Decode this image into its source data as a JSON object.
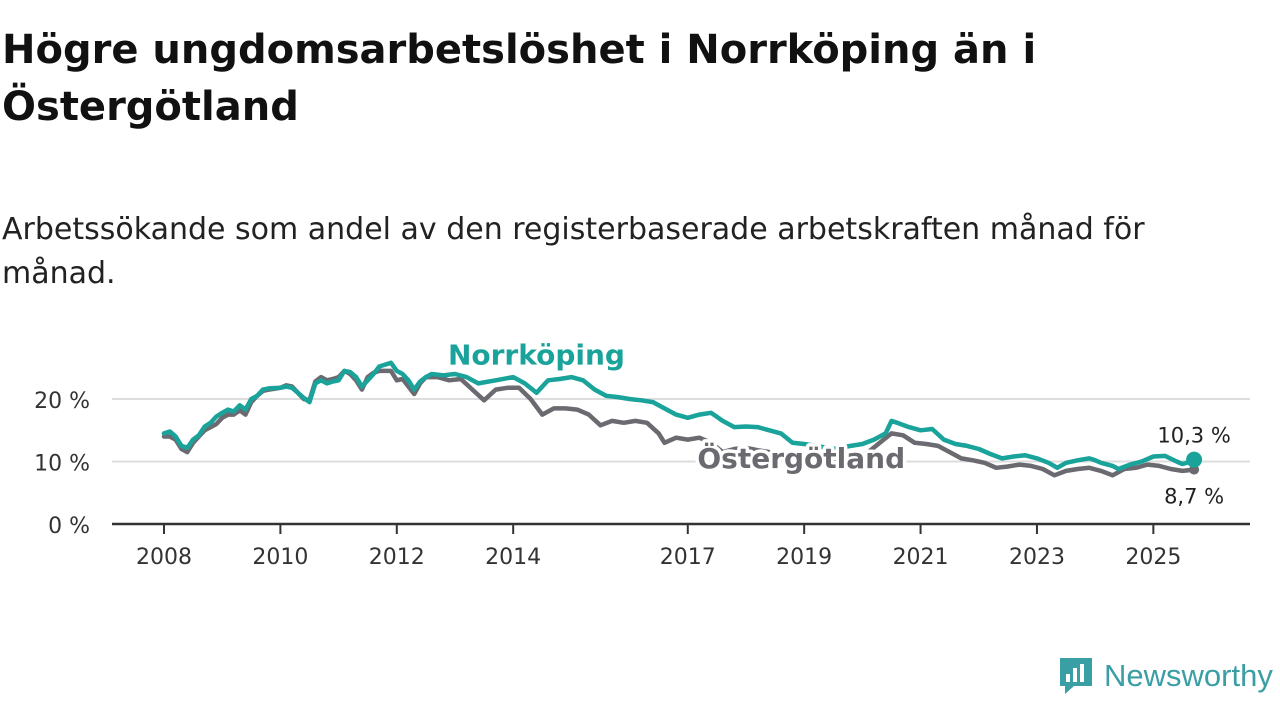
{
  "title": "Högre ungdomsarbetslöshet i Norrköping än i Östergötland",
  "subtitle": "Arbetssökande som andel av den registerbaserade arbetskraften månad för månad.",
  "brand": {
    "name": "Newsworthy",
    "icon": "newsworthy-logo-icon"
  },
  "colors": {
    "norrkoping": "#1aa39a",
    "ostergotland": "#6b6a70",
    "grid": "#dddddd",
    "axis": "#333333"
  },
  "chart_data": {
    "type": "line",
    "title": "Högre ungdomsarbetslöshet i Norrköping än i Östergötland",
    "xlabel": "",
    "ylabel": "",
    "xlim": [
      2008.0,
      2025.75
    ],
    "ylim": [
      0,
      25
    ],
    "x_ticks": [
      2008,
      2010,
      2012,
      2014,
      2017,
      2019,
      2021,
      2023,
      2025
    ],
    "y_ticks": [
      {
        "value": 0,
        "label": "0 %"
      },
      {
        "value": 10,
        "label": "10 %"
      },
      {
        "value": 20,
        "label": "20 %"
      }
    ],
    "series": [
      {
        "name": "Norrköping",
        "label_position": {
          "x": 2014.4,
          "y": 25.5
        },
        "end_label": "10,3 %",
        "points": [
          [
            2008.0,
            14.5
          ],
          [
            2008.1,
            14.8
          ],
          [
            2008.2,
            14.0
          ],
          [
            2008.3,
            12.5
          ],
          [
            2008.4,
            12.2
          ],
          [
            2008.5,
            13.5
          ],
          [
            2008.6,
            14.2
          ],
          [
            2008.7,
            15.6
          ],
          [
            2008.8,
            16.2
          ],
          [
            2008.9,
            17.2
          ],
          [
            2009.0,
            17.8
          ],
          [
            2009.1,
            18.3
          ],
          [
            2009.2,
            18.0
          ],
          [
            2009.3,
            19.0
          ],
          [
            2009.4,
            18.3
          ],
          [
            2009.5,
            20.0
          ],
          [
            2009.6,
            20.5
          ],
          [
            2009.7,
            21.5
          ],
          [
            2009.8,
            21.7
          ],
          [
            2010.0,
            21.8
          ],
          [
            2010.1,
            22.0
          ],
          [
            2010.2,
            21.8
          ],
          [
            2010.3,
            21.0
          ],
          [
            2010.4,
            20.2
          ],
          [
            2010.5,
            19.5
          ],
          [
            2010.6,
            22.5
          ],
          [
            2010.7,
            23.0
          ],
          [
            2010.8,
            22.5
          ],
          [
            2010.9,
            22.8
          ],
          [
            2011.0,
            23.0
          ],
          [
            2011.1,
            24.5
          ],
          [
            2011.2,
            24.3
          ],
          [
            2011.3,
            23.5
          ],
          [
            2011.4,
            22.0
          ],
          [
            2011.5,
            23.0
          ],
          [
            2011.6,
            24.0
          ],
          [
            2011.7,
            25.2
          ],
          [
            2011.8,
            25.5
          ],
          [
            2011.9,
            25.8
          ],
          [
            2012.0,
            24.5
          ],
          [
            2012.1,
            24.0
          ],
          [
            2012.2,
            23.0
          ],
          [
            2012.3,
            21.5
          ],
          [
            2012.4,
            22.8
          ],
          [
            2012.5,
            23.5
          ],
          [
            2012.6,
            24.0
          ],
          [
            2012.8,
            23.8
          ],
          [
            2013.0,
            24.0
          ],
          [
            2013.2,
            23.5
          ],
          [
            2013.4,
            22.5
          ],
          [
            2013.7,
            23.0
          ],
          [
            2014.0,
            23.5
          ],
          [
            2014.2,
            22.5
          ],
          [
            2014.4,
            21.0
          ],
          [
            2014.6,
            23.0
          ],
          [
            2014.8,
            23.2
          ],
          [
            2015.0,
            23.5
          ],
          [
            2015.2,
            23.0
          ],
          [
            2015.4,
            21.5
          ],
          [
            2015.6,
            20.5
          ],
          [
            2015.8,
            20.3
          ],
          [
            2016.0,
            20.0
          ],
          [
            2016.2,
            19.8
          ],
          [
            2016.4,
            19.5
          ],
          [
            2016.6,
            18.5
          ],
          [
            2016.8,
            17.5
          ],
          [
            2017.0,
            17.0
          ],
          [
            2017.2,
            17.5
          ],
          [
            2017.4,
            17.8
          ],
          [
            2017.6,
            16.5
          ],
          [
            2017.8,
            15.5
          ],
          [
            2018.0,
            15.6
          ],
          [
            2018.2,
            15.5
          ],
          [
            2018.4,
            15.0
          ],
          [
            2018.6,
            14.5
          ],
          [
            2018.8,
            13.0
          ],
          [
            2019.0,
            12.8
          ],
          [
            2019.2,
            12.5
          ],
          [
            2019.5,
            12.0
          ],
          [
            2019.8,
            12.5
          ],
          [
            2020.0,
            12.8
          ],
          [
            2020.2,
            13.5
          ],
          [
            2020.4,
            14.5
          ],
          [
            2020.5,
            16.5
          ],
          [
            2020.6,
            16.2
          ],
          [
            2020.8,
            15.5
          ],
          [
            2021.0,
            15.0
          ],
          [
            2021.2,
            15.2
          ],
          [
            2021.4,
            13.5
          ],
          [
            2021.6,
            12.8
          ],
          [
            2021.8,
            12.5
          ],
          [
            2022.0,
            12.0
          ],
          [
            2022.2,
            11.2
          ],
          [
            2022.4,
            10.5
          ],
          [
            2022.6,
            10.8
          ],
          [
            2022.8,
            11.0
          ],
          [
            2023.0,
            10.5
          ],
          [
            2023.2,
            9.8
          ],
          [
            2023.35,
            9.0
          ],
          [
            2023.5,
            9.8
          ],
          [
            2023.7,
            10.2
          ],
          [
            2023.9,
            10.5
          ],
          [
            2024.0,
            10.2
          ],
          [
            2024.1,
            9.8
          ],
          [
            2024.3,
            9.3
          ],
          [
            2024.4,
            8.8
          ],
          [
            2024.6,
            9.5
          ],
          [
            2024.8,
            10.0
          ],
          [
            2025.0,
            10.8
          ],
          [
            2025.2,
            10.9
          ],
          [
            2025.4,
            10.0
          ],
          [
            2025.5,
            9.6
          ],
          [
            2025.65,
            10.0
          ],
          [
            2025.7,
            10.3
          ]
        ]
      },
      {
        "name": "Östergötland",
        "label_position": {
          "x": 2018.95,
          "y": 9.0
        },
        "end_label": "8,7 %",
        "points": [
          [
            2008.0,
            14.0
          ],
          [
            2008.1,
            14.0
          ],
          [
            2008.2,
            13.5
          ],
          [
            2008.3,
            12.0
          ],
          [
            2008.4,
            11.5
          ],
          [
            2008.5,
            13.0
          ],
          [
            2008.6,
            14.0
          ],
          [
            2008.7,
            15.0
          ],
          [
            2008.8,
            15.5
          ],
          [
            2008.9,
            16.0
          ],
          [
            2009.0,
            17.0
          ],
          [
            2009.1,
            17.5
          ],
          [
            2009.2,
            17.5
          ],
          [
            2009.3,
            18.2
          ],
          [
            2009.4,
            17.5
          ],
          [
            2009.5,
            19.5
          ],
          [
            2009.6,
            20.5
          ],
          [
            2009.7,
            21.3
          ],
          [
            2009.8,
            21.5
          ],
          [
            2010.0,
            21.8
          ],
          [
            2010.1,
            22.2
          ],
          [
            2010.2,
            22.0
          ],
          [
            2010.3,
            21.0
          ],
          [
            2010.4,
            20.0
          ],
          [
            2010.5,
            19.8
          ],
          [
            2010.6,
            22.8
          ],
          [
            2010.7,
            23.5
          ],
          [
            2010.8,
            23.0
          ],
          [
            2010.9,
            23.2
          ],
          [
            2011.0,
            23.5
          ],
          [
            2011.1,
            24.5
          ],
          [
            2011.2,
            24.0
          ],
          [
            2011.3,
            23.0
          ],
          [
            2011.4,
            21.5
          ],
          [
            2011.5,
            23.5
          ],
          [
            2011.6,
            24.2
          ],
          [
            2011.7,
            24.5
          ],
          [
            2011.8,
            24.5
          ],
          [
            2011.9,
            24.5
          ],
          [
            2012.0,
            23.0
          ],
          [
            2012.1,
            23.2
          ],
          [
            2012.2,
            22.0
          ],
          [
            2012.3,
            20.8
          ],
          [
            2012.4,
            22.5
          ],
          [
            2012.5,
            23.5
          ],
          [
            2012.7,
            23.5
          ],
          [
            2012.9,
            23.0
          ],
          [
            2013.1,
            23.2
          ],
          [
            2013.3,
            21.5
          ],
          [
            2013.5,
            19.8
          ],
          [
            2013.7,
            21.5
          ],
          [
            2013.9,
            21.8
          ],
          [
            2014.1,
            21.8
          ],
          [
            2014.3,
            20.0
          ],
          [
            2014.5,
            17.5
          ],
          [
            2014.7,
            18.5
          ],
          [
            2014.9,
            18.5
          ],
          [
            2015.1,
            18.3
          ],
          [
            2015.3,
            17.5
          ],
          [
            2015.5,
            15.8
          ],
          [
            2015.7,
            16.5
          ],
          [
            2015.9,
            16.2
          ],
          [
            2016.1,
            16.5
          ],
          [
            2016.3,
            16.2
          ],
          [
            2016.5,
            14.5
          ],
          [
            2016.6,
            13.0
          ],
          [
            2016.8,
            13.8
          ],
          [
            2017.0,
            13.5
          ],
          [
            2017.2,
            13.8
          ],
          [
            2017.4,
            13.0
          ],
          [
            2017.6,
            11.5
          ],
          [
            2017.8,
            12.0
          ],
          [
            2018.0,
            12.2
          ],
          [
            2018.2,
            11.8
          ],
          [
            2018.4,
            11.5
          ],
          [
            2018.6,
            11.0
          ],
          [
            2018.8,
            10.5
          ],
          [
            2019.0,
            10.2
          ],
          [
            2019.3,
            10.0
          ],
          [
            2019.6,
            10.2
          ],
          [
            2019.9,
            10.5
          ],
          [
            2020.1,
            11.5
          ],
          [
            2020.3,
            13.0
          ],
          [
            2020.5,
            14.5
          ],
          [
            2020.7,
            14.2
          ],
          [
            2020.9,
            13.0
          ],
          [
            2021.1,
            12.8
          ],
          [
            2021.3,
            12.5
          ],
          [
            2021.5,
            11.5
          ],
          [
            2021.7,
            10.5
          ],
          [
            2021.9,
            10.2
          ],
          [
            2022.1,
            9.8
          ],
          [
            2022.3,
            9.0
          ],
          [
            2022.5,
            9.2
          ],
          [
            2022.7,
            9.5
          ],
          [
            2022.9,
            9.3
          ],
          [
            2023.1,
            8.8
          ],
          [
            2023.3,
            7.8
          ],
          [
            2023.5,
            8.5
          ],
          [
            2023.7,
            8.8
          ],
          [
            2023.9,
            9.0
          ],
          [
            2024.1,
            8.5
          ],
          [
            2024.3,
            7.8
          ],
          [
            2024.5,
            8.8
          ],
          [
            2024.7,
            9.0
          ],
          [
            2024.9,
            9.5
          ],
          [
            2025.1,
            9.3
          ],
          [
            2025.3,
            8.8
          ],
          [
            2025.5,
            8.5
          ],
          [
            2025.7,
            8.7
          ]
        ]
      }
    ]
  }
}
